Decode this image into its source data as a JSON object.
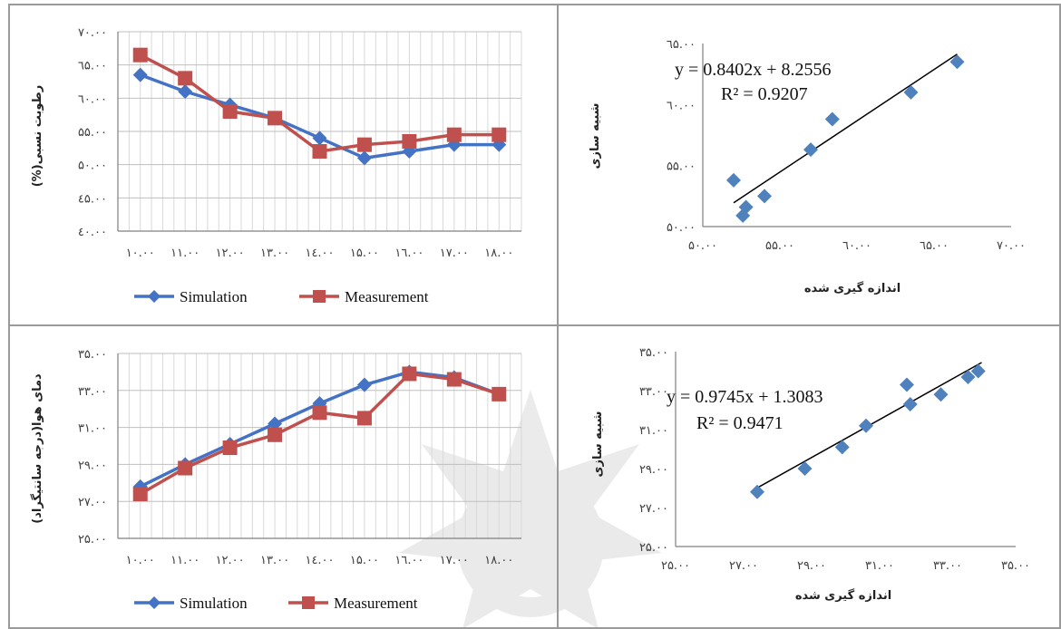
{
  "chart_data": [
    {
      "id": "humidity-line",
      "type": "line",
      "categories": [
        "10.00",
        "11.00",
        "12.00",
        "13.00",
        "14.00",
        "15.00",
        "16.00",
        "17.00",
        "18.00"
      ],
      "x_tick_labels": [
        "۱۰.۰۰",
        "۱۱.۰۰",
        "۱۲.۰۰",
        "۱۳.۰۰",
        "۱٤.۰۰",
        "۱۵.۰۰",
        "۱٦.۰۰",
        "۱۷.۰۰",
        "۱۸.۰۰"
      ],
      "ylabel": "رطوبت نسبی(%)",
      "ylim": [
        40,
        70
      ],
      "y_ticks": [
        40,
        45,
        50,
        55,
        60,
        65,
        70
      ],
      "y_tick_labels": [
        "٤۰.۰۰",
        "٤۵.۰۰",
        "۵۰.۰۰",
        "۵۵.۰۰",
        "٦۰.۰۰",
        "٦۵.۰۰",
        "۷۰.۰۰"
      ],
      "grid": true,
      "legend_position": "bottom",
      "series": [
        {
          "name": "Simulation",
          "color": "#4472C4",
          "marker": "diamond",
          "values": [
            63.5,
            61.0,
            59.0,
            57.0,
            54.0,
            51.0,
            52.0,
            53.0,
            53.0
          ]
        },
        {
          "name": "Measurement",
          "color": "#C0504D",
          "marker": "square",
          "values": [
            66.5,
            63.0,
            58.0,
            57.0,
            52.0,
            53.0,
            53.5,
            54.5,
            54.5
          ]
        }
      ]
    },
    {
      "id": "humidity-scatter",
      "type": "scatter",
      "xlabel": "اندازه گیری شده",
      "ylabel": "شبیه سازی",
      "xlim": [
        50,
        70
      ],
      "ylim": [
        50,
        65
      ],
      "x_ticks": [
        50,
        55,
        60,
        65,
        70
      ],
      "x_tick_labels": [
        "۵۰.۰۰",
        "۵۵.۰۰",
        "٦۰.۰۰",
        "٦۵.۰۰",
        "۷۰.۰۰"
      ],
      "y_ticks": [
        50,
        55,
        60,
        65
      ],
      "y_tick_labels": [
        "۵۰.۰۰",
        "۵۵.۰۰",
        "٦۰.۰۰",
        "٦۵.۰۰"
      ],
      "grid": false,
      "equation": "y = 0.8402x + 8.2556",
      "r2": "R² = 0.9207",
      "trendline": {
        "slope": 0.8402,
        "intercept": 8.2556,
        "x_range": [
          52.0,
          66.5
        ]
      },
      "points": [
        {
          "x": 52.0,
          "y": 53.8
        },
        {
          "x": 52.6,
          "y": 50.9
        },
        {
          "x": 52.8,
          "y": 51.6
        },
        {
          "x": 54.0,
          "y": 52.5
        },
        {
          "x": 57.0,
          "y": 56.3
        },
        {
          "x": 58.4,
          "y": 58.8
        },
        {
          "x": 63.5,
          "y": 61.0
        },
        {
          "x": 66.5,
          "y": 63.5
        }
      ],
      "marker_color": "#4F81BD"
    },
    {
      "id": "temperature-line",
      "type": "line",
      "categories": [
        "10.00",
        "11.00",
        "12.00",
        "13.00",
        "14.00",
        "15.00",
        "16.00",
        "17.00",
        "18.00"
      ],
      "x_tick_labels": [
        "۱۰.۰۰",
        "۱۱.۰۰",
        "۱۲.۰۰",
        "۱۳.۰۰",
        "۱٤.۰۰",
        "۱۵.۰۰",
        "۱٦.۰۰",
        "۱۷.۰۰",
        "۱۸.۰۰"
      ],
      "ylabel": "دمای هوا(درجه سانتیگراد)",
      "ylim": [
        25,
        35
      ],
      "y_ticks": [
        25,
        27,
        29,
        31,
        33,
        35
      ],
      "y_tick_labels": [
        "۲۵.۰۰",
        "۲۷.۰۰",
        "۲۹.۰۰",
        "۳۱.۰۰",
        "۳۳.۰۰",
        "۳۵.۰۰"
      ],
      "grid": true,
      "legend_position": "bottom",
      "series": [
        {
          "name": "Simulation",
          "color": "#4472C4",
          "marker": "diamond",
          "values": [
            27.8,
            29.0,
            30.1,
            31.2,
            32.3,
            33.3,
            34.0,
            33.7,
            32.8
          ]
        },
        {
          "name": "Measurement",
          "color": "#C0504D",
          "marker": "square",
          "values": [
            27.4,
            28.8,
            29.9,
            30.6,
            31.8,
            31.5,
            33.9,
            33.6,
            32.8
          ]
        }
      ]
    },
    {
      "id": "temperature-scatter",
      "type": "scatter",
      "xlabel": "اندازه گیری شده",
      "ylabel": "شبیه سازی",
      "xlim": [
        25,
        35
      ],
      "ylim": [
        25,
        35
      ],
      "x_ticks": [
        25,
        27,
        29,
        31,
        33,
        35
      ],
      "x_tick_labels": [
        "۲۵.۰۰",
        "۲۷.۰۰",
        "۲۹.۰۰",
        "۳۱.۰۰",
        "۳۳.۰۰",
        "۳۵.۰۰"
      ],
      "y_ticks": [
        25,
        27,
        29,
        31,
        33,
        35
      ],
      "y_tick_labels": [
        "۲۵.۰۰",
        "۲۷.۰۰",
        "۲۹.۰۰",
        "۳۱.۰۰",
        "۳۳.۰۰",
        "۳۵.۰۰"
      ],
      "grid": false,
      "equation": "y = 0.9745x + 1.3083",
      "r2": "R² = 0.9471",
      "trendline": {
        "slope": 0.9745,
        "intercept": 1.3083,
        "x_range": [
          27.4,
          34.0
        ]
      },
      "points": [
        {
          "x": 27.4,
          "y": 27.8
        },
        {
          "x": 28.8,
          "y": 29.0
        },
        {
          "x": 29.9,
          "y": 30.1
        },
        {
          "x": 30.6,
          "y": 31.2
        },
        {
          "x": 31.8,
          "y": 33.3
        },
        {
          "x": 31.9,
          "y": 32.3
        },
        {
          "x": 32.8,
          "y": 32.8
        },
        {
          "x": 33.6,
          "y": 33.7
        },
        {
          "x": 33.9,
          "y": 34.0
        }
      ],
      "marker_color": "#4F81BD"
    }
  ]
}
